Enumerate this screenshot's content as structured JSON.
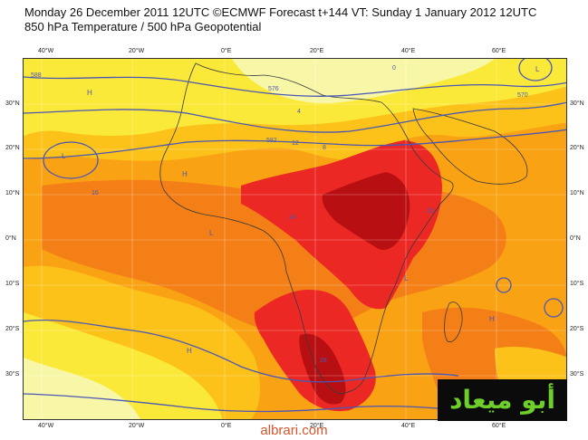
{
  "header": {
    "line1": "Monday 26 December 2011 12UTC ©ECMWF Forecast t+144 VT: Sunday 1 January 2012 12UTC",
    "line2": "850 hPa Temperature / 500 hPa Geopotential"
  },
  "axes": {
    "lon_labels": [
      "40°W",
      "20°W",
      "0°E",
      "20°E",
      "40°E",
      "60°E"
    ],
    "lat_labels": [
      "30°N",
      "20°N",
      "10°N",
      "0°N",
      "10°S",
      "20°S",
      "30°S"
    ]
  },
  "contour_labels": [
    "588",
    "582",
    "576",
    "570",
    "12",
    "16",
    "20",
    "24",
    "28",
    "8",
    "4",
    "0"
  ],
  "pressure_marks": [
    "H",
    "L"
  ],
  "watermark": "أبو ميعاد",
  "site": "albrari.com",
  "colors": {
    "pale_yellow": "#f8f7a8",
    "yellow": "#fbe93a",
    "gold": "#fcc21a",
    "orange": "#f9a213",
    "dark_orange": "#f47f17",
    "red": "#ec2824",
    "dark_red": "#b80f12",
    "contour": "#4b57b4",
    "coast": "#3a3a3a",
    "watermark_text": "#6fcf2a"
  }
}
